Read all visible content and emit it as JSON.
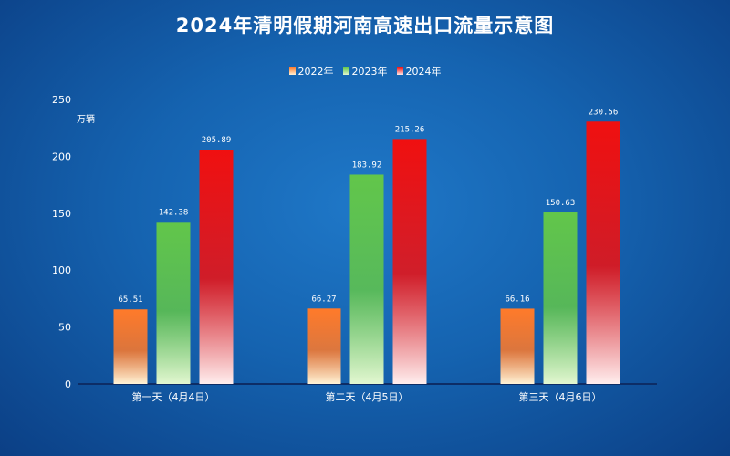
{
  "chart_data": {
    "type": "bar",
    "title": "2024年清明假期河南高速出口流量示意图",
    "unit": "万辆",
    "categories": [
      "第一天（4月4日）",
      "第二天（4月5日）",
      "第三天（4月6日）"
    ],
    "series": [
      {
        "name": "2022年",
        "values": [
          65.51,
          66.27,
          66.16
        ],
        "color_top": "#ff7a2a",
        "color_bottom": "#fff3d6"
      },
      {
        "name": "2023年",
        "values": [
          142.38,
          183.92,
          150.63
        ],
        "color_top": "#62c64a",
        "color_bottom": "#e2f7d0"
      },
      {
        "name": "2024年",
        "values": [
          205.89,
          215.26,
          230.56
        ],
        "color_top": "#f01010",
        "color_bottom": "#ffeeee"
      }
    ],
    "yticks": [
      0,
      50,
      100,
      150,
      200,
      250
    ],
    "ylim": [
      0,
      250
    ],
    "grid": false,
    "legend_position": "top-center"
  }
}
